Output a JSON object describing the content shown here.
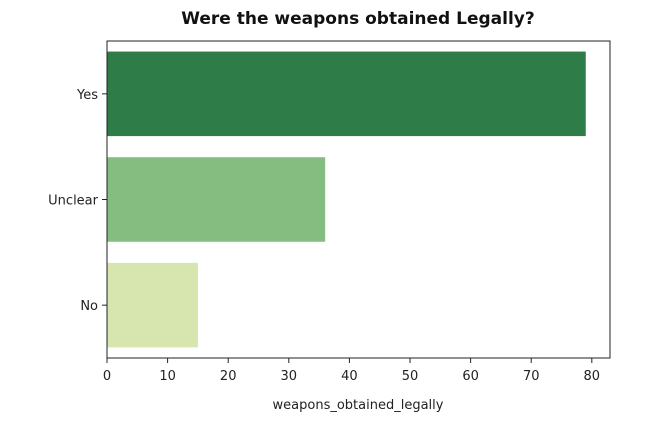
{
  "chart_data": {
    "type": "bar",
    "orientation": "horizontal",
    "title": "Were the weapons obtained Legally?",
    "xlabel": "weapons_obtained_legally",
    "ylabel": "",
    "categories": [
      "Yes",
      "Unclear",
      "No"
    ],
    "values": [
      79,
      36,
      15
    ],
    "colors": [
      "#2e7d49",
      "#85bc80",
      "#d6e6ae"
    ],
    "xlim": [
      0,
      83
    ],
    "xticks": [
      0,
      10,
      20,
      30,
      40,
      50,
      60,
      70,
      80
    ],
    "grid": false,
    "legend": "none"
  }
}
